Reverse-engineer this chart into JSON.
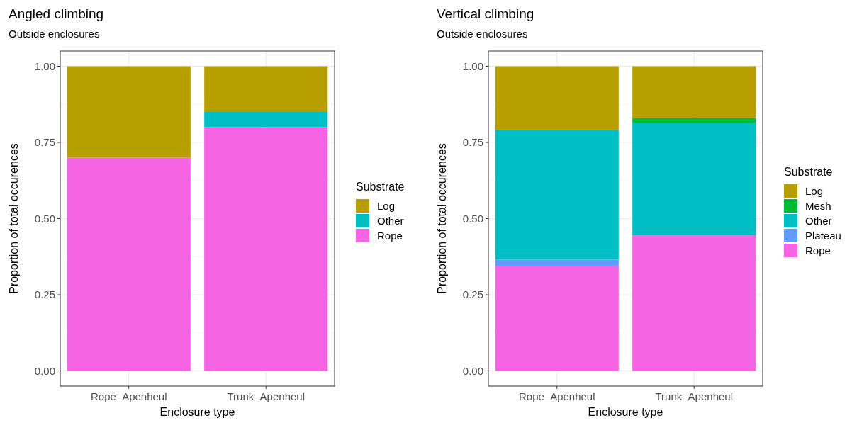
{
  "chart_data": [
    {
      "type": "bar",
      "title": "Angled climbing",
      "subtitle": "Outside enclosures",
      "xlabel": "Enclosure type",
      "ylabel": "Proportion of total occurences",
      "legend_title": "Substrate",
      "categories": [
        "Rope_Apenheul",
        "Trunk_Apenheul"
      ],
      "stacked": true,
      "series": [
        {
          "name": "Rope",
          "color": "#f564e3",
          "values": [
            0.7,
            0.8
          ]
        },
        {
          "name": "Other",
          "color": "#00bfc4",
          "values": [
            0,
            0.05
          ]
        },
        {
          "name": "Log",
          "color": "#b79f00",
          "values": [
            0.3,
            0.15
          ]
        }
      ],
      "ylim": [
        -0.05,
        1.05
      ],
      "yticks": [
        {
          "value": 0,
          "label": "0.00"
        },
        {
          "value": 0.25,
          "label": "0.25"
        },
        {
          "value": 0.5,
          "label": "0.50"
        },
        {
          "value": 0.75,
          "label": "0.75"
        },
        {
          "value": 1,
          "label": "1.00"
        }
      ],
      "grid": true,
      "legend": "right"
    },
    {
      "type": "bar",
      "title": "Vertical climbing",
      "subtitle": "Outside enclosures",
      "xlabel": "Enclosure type",
      "ylabel": "Proportion of total occurences",
      "legend_title": "Substrate",
      "categories": [
        "Rope_Apenheul",
        "Trunk_Apenheul"
      ],
      "stacked": true,
      "series": [
        {
          "name": "Rope",
          "color": "#f564e3",
          "values": [
            0.345,
            0.445
          ]
        },
        {
          "name": "Plateau",
          "color": "#619cff",
          "values": [
            0.02,
            0
          ]
        },
        {
          "name": "Other",
          "color": "#00bfc4",
          "values": [
            0.425,
            0.37
          ]
        },
        {
          "name": "Mesh",
          "color": "#00ba38",
          "values": [
            0,
            0.015
          ]
        },
        {
          "name": "Log",
          "color": "#b79f00",
          "values": [
            0.21,
            0.17
          ]
        }
      ],
      "ylim": [
        -0.05,
        1.05
      ],
      "yticks": [
        {
          "value": 0,
          "label": "0.00"
        },
        {
          "value": 0.25,
          "label": "0.25"
        },
        {
          "value": 0.5,
          "label": "0.50"
        },
        {
          "value": 0.75,
          "label": "0.75"
        },
        {
          "value": 1,
          "label": "1.00"
        }
      ],
      "grid": true,
      "legend": "right"
    }
  ]
}
